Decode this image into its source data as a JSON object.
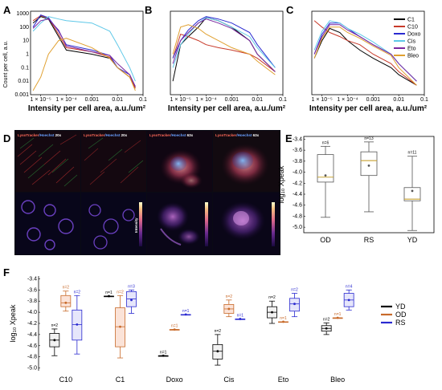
{
  "panel_labels": [
    "A",
    "B",
    "C",
    "D",
    "E",
    "F"
  ],
  "colors": {
    "C1": "#000000",
    "C10": "#c83a2a",
    "Doxo": "#2a2ad0",
    "Cis": "#5ec8e8",
    "Eto": "#7a28a0",
    "Bleo": "#e0a030",
    "YD": "#000000",
    "OD": "#c86a2a",
    "RS": "#2a2ad0"
  },
  "panel_a": {
    "xlabel": "Intensity per cell area, a.u./um²",
    "ylabel": "Count per cell, a.u.",
    "yticks": [
      "1000",
      "100",
      "10",
      "1",
      "0.1",
      "0.01",
      "0.001"
    ],
    "xticks": [
      "1 × 10⁻⁵",
      "1 × 10⁻⁴",
      "0.001",
      "0.01",
      "0.1"
    ],
    "legend": [
      "C1",
      "C10",
      "Doxo",
      "Cis",
      "Eto",
      "Bleo"
    ]
  },
  "chart_data": [
    {
      "type": "line",
      "panel": "A",
      "xlabel": "Intensity per cell area, a.u./um²",
      "ylabel": "Count per cell, a.u.",
      "xscale": "log",
      "yscale": "log",
      "xlim": [
        4e-06,
        0.1
      ],
      "ylim": [
        0.001,
        1500
      ],
      "series": [
        {
          "name": "C1",
          "x": [
            5e-06,
            1e-05,
            2e-05,
            5e-05,
            0.0001,
            0.001,
            0.005,
            0.01,
            0.03,
            0.05
          ],
          "y": [
            200,
            600,
            400,
            20,
            2,
            1,
            0.5,
            0.1,
            0.02,
            0.003
          ]
        },
        {
          "name": "C10",
          "x": [
            5e-06,
            1e-05,
            2e-05,
            5e-05,
            0.0001,
            0.001,
            0.005,
            0.01,
            0.03,
            0.05
          ],
          "y": [
            300,
            700,
            500,
            30,
            3,
            1.5,
            0.6,
            0.1,
            0.02,
            0.003
          ]
        },
        {
          "name": "Doxo",
          "x": [
            5e-06,
            1e-05,
            2e-05,
            5e-05,
            0.0001,
            0.001,
            0.005,
            0.01,
            0.03,
            0.05
          ],
          "y": [
            100,
            800,
            500,
            50,
            5,
            2,
            0.8,
            0.1,
            0.03,
            0.004
          ]
        },
        {
          "name": "Cis",
          "x": [
            5e-06,
            1e-05,
            2e-05,
            5e-05,
            0.0001,
            0.001,
            0.005,
            0.01,
            0.03,
            0.05
          ],
          "y": [
            50,
            200,
            600,
            400,
            300,
            200,
            50,
            5,
            0.1,
            0.01
          ]
        },
        {
          "name": "Eto",
          "x": [
            5e-06,
            1e-05,
            2e-05,
            5e-05,
            0.0001,
            0.001,
            0.005,
            0.01,
            0.03,
            0.05
          ],
          "y": [
            80,
            300,
            400,
            60,
            4,
            1.5,
            0.8,
            0.2,
            0.03,
            0.004
          ]
        },
        {
          "name": "Bleo",
          "x": [
            5e-06,
            1e-05,
            2e-05,
            5e-05,
            0.0001,
            0.001,
            0.005,
            0.01,
            0.03,
            0.05
          ],
          "y": [
            0.002,
            0.02,
            1,
            10,
            15,
            3,
            0.5,
            0.1,
            0.02,
            0.002
          ]
        }
      ]
    },
    {
      "type": "line",
      "panel": "B",
      "xlabel": "Intensity per cell area, a.u./um²",
      "xscale": "log",
      "yscale": "log",
      "xlim": [
        4e-06,
        0.1
      ],
      "ylim": [
        0.001,
        1500
      ],
      "series": [
        {
          "name": "C1",
          "x": [
            5e-06,
            1e-05,
            2e-05,
            5e-05,
            0.0001,
            0.0003,
            0.001,
            0.005,
            0.01,
            0.05
          ],
          "y": [
            0.01,
            5,
            20,
            100,
            500,
            300,
            100,
            10,
            1,
            0.05
          ]
        },
        {
          "name": "C10",
          "x": [
            5e-06,
            1e-05,
            2e-05,
            5e-05,
            0.0001,
            0.0003,
            0.001,
            0.005,
            0.01,
            0.05
          ],
          "y": [
            0.5,
            30,
            20,
            10,
            5,
            3,
            2,
            1,
            0.5,
            0.05
          ]
        },
        {
          "name": "Doxo",
          "x": [
            5e-06,
            1e-05,
            2e-05,
            5e-05,
            0.0001,
            0.0003,
            0.001,
            0.005,
            0.01,
            0.05
          ],
          "y": [
            0.5,
            10,
            60,
            300,
            600,
            400,
            200,
            40,
            5,
            0.1
          ]
        },
        {
          "name": "Cis",
          "x": [
            5e-06,
            1e-05,
            2e-05,
            5e-05,
            0.0001,
            0.0003,
            0.001,
            0.005,
            0.01,
            0.05
          ],
          "y": [
            0.1,
            5,
            30,
            200,
            500,
            300,
            100,
            20,
            3,
            0.1
          ]
        },
        {
          "name": "Eto",
          "x": [
            5e-06,
            1e-05,
            2e-05,
            5e-05,
            0.0001,
            0.0003,
            0.001,
            0.005,
            0.01,
            0.05
          ],
          "y": [
            0.2,
            10,
            40,
            200,
            400,
            200,
            80,
            10,
            1,
            0.05
          ]
        },
        {
          "name": "Bleo",
          "x": [
            5e-06,
            1e-05,
            2e-05,
            5e-05,
            0.0001,
            0.0003,
            0.001,
            0.005,
            0.01,
            0.05
          ],
          "y": [
            1,
            100,
            150,
            80,
            30,
            10,
            3,
            1,
            0.3,
            0.03
          ]
        }
      ]
    },
    {
      "type": "line",
      "panel": "C",
      "xlabel": "Intensity per cell area, a.u./um²",
      "xscale": "log",
      "yscale": "log",
      "xlim": [
        4e-06,
        0.1
      ],
      "ylim": [
        0.001,
        1500
      ],
      "series": [
        {
          "name": "C1",
          "x": [
            5e-06,
            1e-05,
            2e-05,
            5e-05,
            0.0001,
            0.0003,
            0.001,
            0.005,
            0.01,
            0.05
          ],
          "y": [
            0.5,
            10,
            80,
            40,
            10,
            2,
            0.5,
            0.1,
            0.03,
            0.005
          ]
        },
        {
          "name": "C10",
          "x": [
            5e-06,
            1e-05,
            2e-05,
            5e-05,
            0.0001,
            0.0003,
            0.001,
            0.005,
            0.01,
            0.05
          ],
          "y": [
            300,
            100,
            40,
            20,
            10,
            5,
            1,
            0.2,
            0.05,
            0.005
          ]
        },
        {
          "name": "Doxo",
          "x": [
            5e-06,
            1e-05,
            2e-05,
            5e-05,
            0.0001,
            0.0003,
            0.001,
            0.005,
            0.01,
            0.05
          ],
          "y": [
            1,
            30,
            200,
            200,
            80,
            20,
            5,
            1,
            0.2,
            0.01
          ]
        },
        {
          "name": "Cis",
          "x": [
            5e-06,
            1e-05,
            2e-05,
            5e-05,
            0.0001,
            0.0003,
            0.001,
            0.005,
            0.01,
            0.05
          ],
          "y": [
            2,
            50,
            300,
            200,
            80,
            30,
            8,
            1,
            0.2,
            0.01
          ]
        },
        {
          "name": "Eto",
          "x": [
            5e-06,
            1e-05,
            2e-05,
            5e-05,
            0.0001,
            0.0003,
            0.001,
            0.005,
            0.01,
            0.05
          ],
          "y": [
            1,
            20,
            150,
            150,
            60,
            20,
            5,
            1,
            0.2,
            0.01
          ]
        },
        {
          "name": "Bleo",
          "x": [
            5e-06,
            1e-05,
            2e-05,
            5e-05,
            0.0001,
            0.0003,
            0.001,
            0.005,
            0.01,
            0.05
          ],
          "y": [
            0.5,
            15,
            100,
            100,
            40,
            15,
            4,
            0.8,
            0.1,
            0.005
          ]
        }
      ]
    },
    {
      "type": "box",
      "panel": "E",
      "ylabel": "log₁₀ Xpeak",
      "ylim": [
        -5.1,
        -3.35
      ],
      "yticks": [
        -3.4,
        -3.6,
        -3.8,
        -4.0,
        -4.2,
        -4.4,
        -4.6,
        -4.8,
        -5.0
      ],
      "categories": [
        "OD",
        "RS",
        "YD"
      ],
      "n_labels": [
        "n=6",
        "n=13",
        "n=11"
      ],
      "boxes": [
        {
          "cat": "OD",
          "whisker_low": -4.82,
          "q1": -4.18,
          "median": -4.09,
          "q3": -3.68,
          "whisker_high": -3.53,
          "mean": -4.06
        },
        {
          "cat": "RS",
          "whisker_low": -4.72,
          "q1": -4.06,
          "median": -3.79,
          "q3": -3.63,
          "whisker_high": -3.45,
          "mean": -3.88
        },
        {
          "cat": "YD",
          "whisker_low": -5.06,
          "q1": -4.52,
          "median": -4.49,
          "q3": -4.28,
          "whisker_high": -3.71,
          "mean": -4.34
        }
      ]
    },
    {
      "type": "box",
      "panel": "F",
      "ylabel": "log₁₀ Xpeak",
      "ylim": [
        -5.05,
        -3.35
      ],
      "yticks": [
        -3.4,
        -3.6,
        -3.8,
        -4.0,
        -4.2,
        -4.4,
        -4.6,
        -4.8,
        -5.0
      ],
      "categories": [
        "C10",
        "C1",
        "Doxo",
        "Cis",
        "Eto",
        "Bleo"
      ],
      "series": [
        "YD",
        "OD",
        "RS"
      ],
      "boxes": [
        {
          "cat": "C10",
          "series": "YD",
          "n": "n=2",
          "whisker_low": -4.78,
          "q1": -4.62,
          "median": -4.5,
          "q3": -4.38,
          "whisker_high": -4.3,
          "mean": -4.5
        },
        {
          "cat": "C10",
          "series": "OD",
          "n": "n=2",
          "whisker_low": -3.98,
          "q1": -3.9,
          "median": -3.83,
          "q3": -3.7,
          "whisker_high": -3.62,
          "mean": -3.83
        },
        {
          "cat": "C10",
          "series": "RS",
          "n": "n=2",
          "whisker_low": -4.75,
          "q1": -4.5,
          "median": -4.22,
          "q3": -3.96,
          "whisker_high": -3.7,
          "mean": -4.22
        },
        {
          "cat": "C1",
          "series": "YD",
          "n": "n=1",
          "whisker_low": -3.71,
          "q1": -3.71,
          "median": -3.71,
          "q3": -3.71,
          "whisker_high": -3.71,
          "mean": -3.71
        },
        {
          "cat": "C1",
          "series": "OD",
          "n": "n=2",
          "whisker_low": -4.82,
          "q1": -4.62,
          "median": -4.26,
          "q3": -3.92,
          "whisker_high": -3.7,
          "mean": -4.26
        },
        {
          "cat": "C1",
          "series": "RS",
          "n": "n=3",
          "whisker_low": -4.02,
          "q1": -3.9,
          "median": -3.76,
          "q3": -3.63,
          "whisker_high": -3.6,
          "mean": -3.78
        },
        {
          "cat": "Doxo",
          "series": "YD",
          "n": "n=1",
          "whisker_low": -4.78,
          "q1": -4.78,
          "median": -4.78,
          "q3": -4.78,
          "whisker_high": -4.78,
          "mean": -4.78
        },
        {
          "cat": "Doxo",
          "series": "OD",
          "n": "n=1",
          "whisker_low": -4.31,
          "q1": -4.31,
          "median": -4.31,
          "q3": -4.31,
          "whisker_high": -4.31,
          "mean": -4.31
        },
        {
          "cat": "Doxo",
          "series": "RS",
          "n": "n=1",
          "whisker_low": -4.04,
          "q1": -4.04,
          "median": -4.04,
          "q3": -4.04,
          "whisker_high": -4.04,
          "mean": -4.04
        },
        {
          "cat": "Cis",
          "series": "YD",
          "n": "n=2",
          "whisker_low": -4.95,
          "q1": -4.84,
          "median": -4.7,
          "q3": -4.58,
          "whisker_high": -4.4,
          "mean": -4.7
        },
        {
          "cat": "Cis",
          "series": "OD",
          "n": "n=2",
          "whisker_low": -4.08,
          "q1": -4.02,
          "median": -3.94,
          "q3": -3.86,
          "whisker_high": -3.78,
          "mean": -3.94
        },
        {
          "cat": "Cis",
          "series": "RS",
          "n": "n=1",
          "whisker_low": -4.12,
          "q1": -4.12,
          "median": -4.12,
          "q3": -4.12,
          "whisker_high": -4.12,
          "mean": -4.12
        },
        {
          "cat": "Eto",
          "series": "YD",
          "n": "n=2",
          "whisker_low": -4.2,
          "q1": -4.1,
          "median": -4.0,
          "q3": -3.9,
          "whisker_high": -3.8,
          "mean": -4.0
        },
        {
          "cat": "Eto",
          "series": "OD",
          "n": "n=1",
          "whisker_low": -4.17,
          "q1": -4.17,
          "median": -4.17,
          "q3": -4.17,
          "whisker_high": -4.17,
          "mean": -4.17
        },
        {
          "cat": "Eto",
          "series": "RS",
          "n": "n=2",
          "whisker_low": -4.08,
          "q1": -3.98,
          "median": -3.85,
          "q3": -3.75,
          "whisker_high": -3.66,
          "mean": -3.85
        },
        {
          "cat": "Bleo",
          "series": "YD",
          "n": "n=2",
          "whisker_low": -4.4,
          "q1": -4.34,
          "median": -4.29,
          "q3": -4.24,
          "whisker_high": -4.19,
          "mean": -4.29
        },
        {
          "cat": "Bleo",
          "series": "OD",
          "n": "n=1",
          "whisker_low": -4.1,
          "q1": -4.1,
          "median": -4.1,
          "q3": -4.1,
          "whisker_high": -4.1,
          "mean": -4.1
        },
        {
          "cat": "Bleo",
          "series": "RS",
          "n": "n=4",
          "whisker_low": -3.96,
          "q1": -3.9,
          "median": -3.78,
          "q3": -3.66,
          "whisker_high": -3.6,
          "mean": -3.78
        }
      ]
    }
  ],
  "panel_d": {
    "markers": [
      {
        "stain1": "LysoTracker",
        "stain2": "/Hoechst",
        "mag": " 20x"
      },
      {
        "stain1": "LysoTracker",
        "stain2": "/Hoechst",
        "mag": " 20x"
      },
      {
        "stain1": "LysoTracker",
        "stain2": "/Hoechst",
        "mag": " 63x"
      },
      {
        "stain1": "LysoTracker",
        "stain2": "/Hoechst",
        "mag": " 63x"
      }
    ],
    "colorbar_label": "Intensity"
  }
}
